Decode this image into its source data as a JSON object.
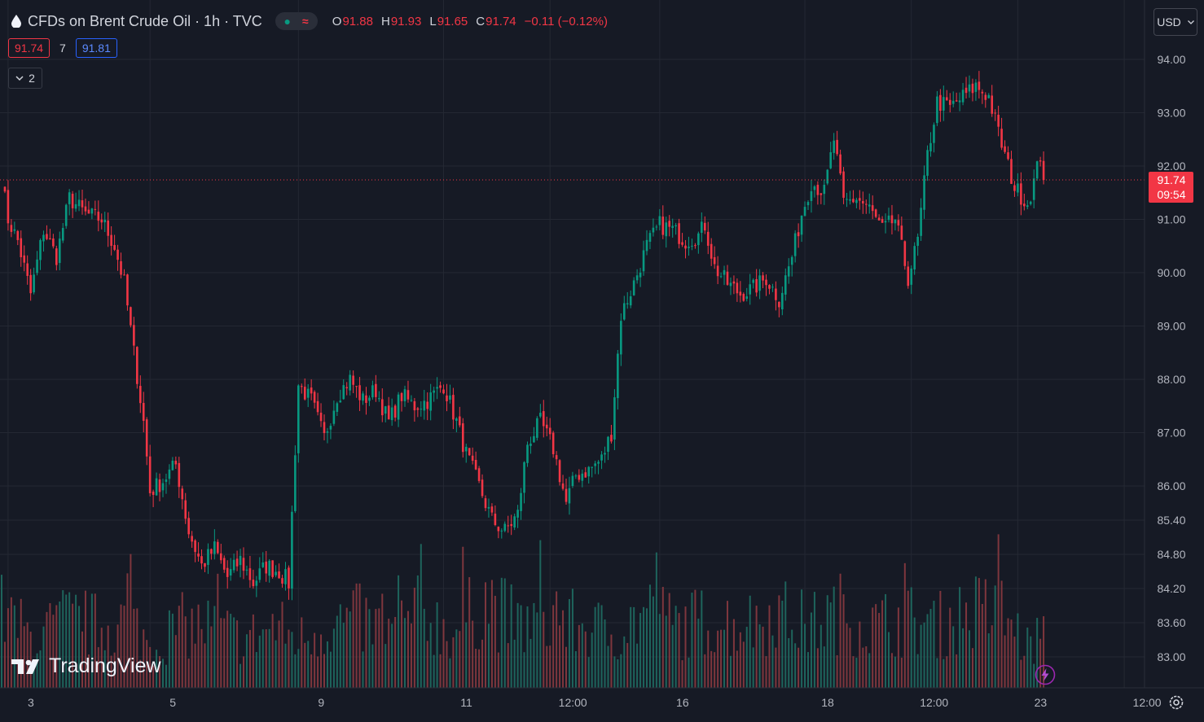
{
  "legend": {
    "title": "CFDs on Brent Crude Oil · 1h · TVC",
    "open_label": "O",
    "open": "91.88",
    "high_label": "H",
    "high": "91.93",
    "low_label": "L",
    "low": "91.65",
    "close_label": "C",
    "close": "91.74",
    "change": "−0.11 (−0.12%)"
  },
  "quote": {
    "bid": "91.74",
    "spread": "7",
    "ask": "91.81"
  },
  "collapse_count": "2",
  "currency": "USD",
  "logo_text": "TradingView",
  "last_price": {
    "value": "91.74",
    "countdown": "09:54"
  },
  "colors": {
    "up": "#089981",
    "down": "#f23645",
    "background": "#161a25",
    "grid": "#242833",
    "text": "#b2b5be"
  },
  "icons": [
    "drop-icon",
    "collapse-chevron-icon",
    "chevron-down-icon",
    "tradingview-logo-icon",
    "gear-icon",
    "lightning-icon"
  ],
  "chart_data": {
    "type": "candlestick",
    "y_axis_ticks": [
      "94.00",
      "93.00",
      "92.00",
      "91.00",
      "90.00",
      "89.00",
      "88.00",
      "87.00",
      "86.00",
      "85.40",
      "84.80",
      "84.20",
      "83.60",
      "83.00"
    ],
    "x_axis_labels": [
      {
        "label": "3",
        "bar": 2
      },
      {
        "label": "5",
        "bar": 46
      },
      {
        "label": "9",
        "bar": 92
      },
      {
        "label": "11",
        "bar": 137
      },
      {
        "label": "12:00",
        "bar": 170
      },
      {
        "label": "16",
        "bar": 204
      },
      {
        "label": "18",
        "bar": 249
      },
      {
        "label": "12:00",
        "bar": 282
      },
      {
        "label": "23",
        "bar": 315
      },
      {
        "label": "12:00",
        "bar": 348
      }
    ],
    "anchors": [
      [
        0,
        91.75
      ],
      [
        2,
        91.0
      ],
      [
        5,
        90.6
      ],
      [
        9,
        89.6
      ],
      [
        13,
        90.8
      ],
      [
        17,
        90.3
      ],
      [
        21,
        91.4
      ],
      [
        26,
        91.1
      ],
      [
        31,
        91.0
      ],
      [
        35,
        90.5
      ],
      [
        38,
        89.8
      ],
      [
        41,
        88.5
      ],
      [
        44,
        87.2
      ],
      [
        46,
        85.9
      ],
      [
        50,
        86.1
      ],
      [
        54,
        86.4
      ],
      [
        58,
        85.2
      ],
      [
        62,
        84.6
      ],
      [
        66,
        84.9
      ],
      [
        70,
        84.4
      ],
      [
        74,
        84.7
      ],
      [
        78,
        84.3
      ],
      [
        82,
        84.6
      ],
      [
        86,
        84.5
      ],
      [
        89,
        84.3
      ],
      [
        92,
        87.9
      ],
      [
        96,
        87.6
      ],
      [
        100,
        86.9
      ],
      [
        104,
        87.7
      ],
      [
        108,
        88.0
      ],
      [
        112,
        87.6
      ],
      [
        116,
        87.8
      ],
      [
        120,
        87.2
      ],
      [
        124,
        87.7
      ],
      [
        128,
        87.5
      ],
      [
        132,
        87.6
      ],
      [
        137,
        87.9
      ],
      [
        141,
        87.2
      ],
      [
        144,
        86.6
      ],
      [
        148,
        86.0
      ],
      [
        152,
        85.4
      ],
      [
        156,
        85.2
      ],
      [
        160,
        85.5
      ],
      [
        163,
        86.8
      ],
      [
        167,
        87.2
      ],
      [
        171,
        86.7
      ],
      [
        175,
        85.7
      ],
      [
        178,
        86.2
      ],
      [
        182,
        86.3
      ],
      [
        186,
        86.5
      ],
      [
        189,
        87.0
      ],
      [
        192,
        89.2
      ],
      [
        196,
        89.8
      ],
      [
        200,
        90.5
      ],
      [
        204,
        90.9
      ],
      [
        208,
        90.8
      ],
      [
        212,
        90.6
      ],
      [
        216,
        90.7
      ],
      [
        218,
        90.9
      ],
      [
        221,
        90.1
      ],
      [
        225,
        89.8
      ],
      [
        229,
        89.6
      ],
      [
        233,
        89.7
      ],
      [
        237,
        89.9
      ],
      [
        241,
        89.5
      ],
      [
        245,
        90.3
      ],
      [
        248,
        91.1
      ],
      [
        251,
        91.7
      ],
      [
        255,
        91.5
      ],
      [
        258,
        92.5
      ],
      [
        261,
        91.3
      ],
      [
        265,
        91.4
      ],
      [
        269,
        91.2
      ],
      [
        273,
        90.8
      ],
      [
        277,
        91.0
      ],
      [
        281,
        89.9
      ],
      [
        284,
        90.6
      ],
      [
        287,
        92.2
      ],
      [
        290,
        93.2
      ],
      [
        294,
        93.1
      ],
      [
        298,
        93.3
      ],
      [
        302,
        93.5
      ],
      [
        306,
        93.3
      ],
      [
        310,
        92.4
      ],
      [
        314,
        91.6
      ],
      [
        318,
        91.3
      ],
      [
        320,
        91.7
      ],
      [
        322,
        92.2
      ],
      [
        323,
        91.74
      ]
    ],
    "volume_anchors": [
      [
        0,
        0.55
      ],
      [
        10,
        0.35
      ],
      [
        20,
        0.5
      ],
      [
        30,
        0.45
      ],
      [
        40,
        0.5
      ],
      [
        46,
        0.3
      ],
      [
        55,
        0.45
      ],
      [
        65,
        0.45
      ],
      [
        75,
        0.35
      ],
      [
        85,
        0.45
      ],
      [
        92,
        0.35
      ],
      [
        100,
        0.45
      ],
      [
        110,
        0.5
      ],
      [
        120,
        0.4
      ],
      [
        130,
        0.55
      ],
      [
        140,
        0.4
      ],
      [
        150,
        0.65
      ],
      [
        160,
        0.45
      ],
      [
        170,
        0.5
      ],
      [
        180,
        0.45
      ],
      [
        190,
        0.4
      ],
      [
        200,
        0.55
      ],
      [
        210,
        0.45
      ],
      [
        220,
        0.5
      ],
      [
        230,
        0.45
      ],
      [
        240,
        0.55
      ],
      [
        250,
        0.45
      ],
      [
        260,
        0.55
      ],
      [
        270,
        0.45
      ],
      [
        280,
        0.5
      ],
      [
        290,
        0.45
      ],
      [
        300,
        0.55
      ],
      [
        310,
        0.55
      ],
      [
        318,
        0.3
      ],
      [
        323,
        0.4
      ]
    ]
  }
}
